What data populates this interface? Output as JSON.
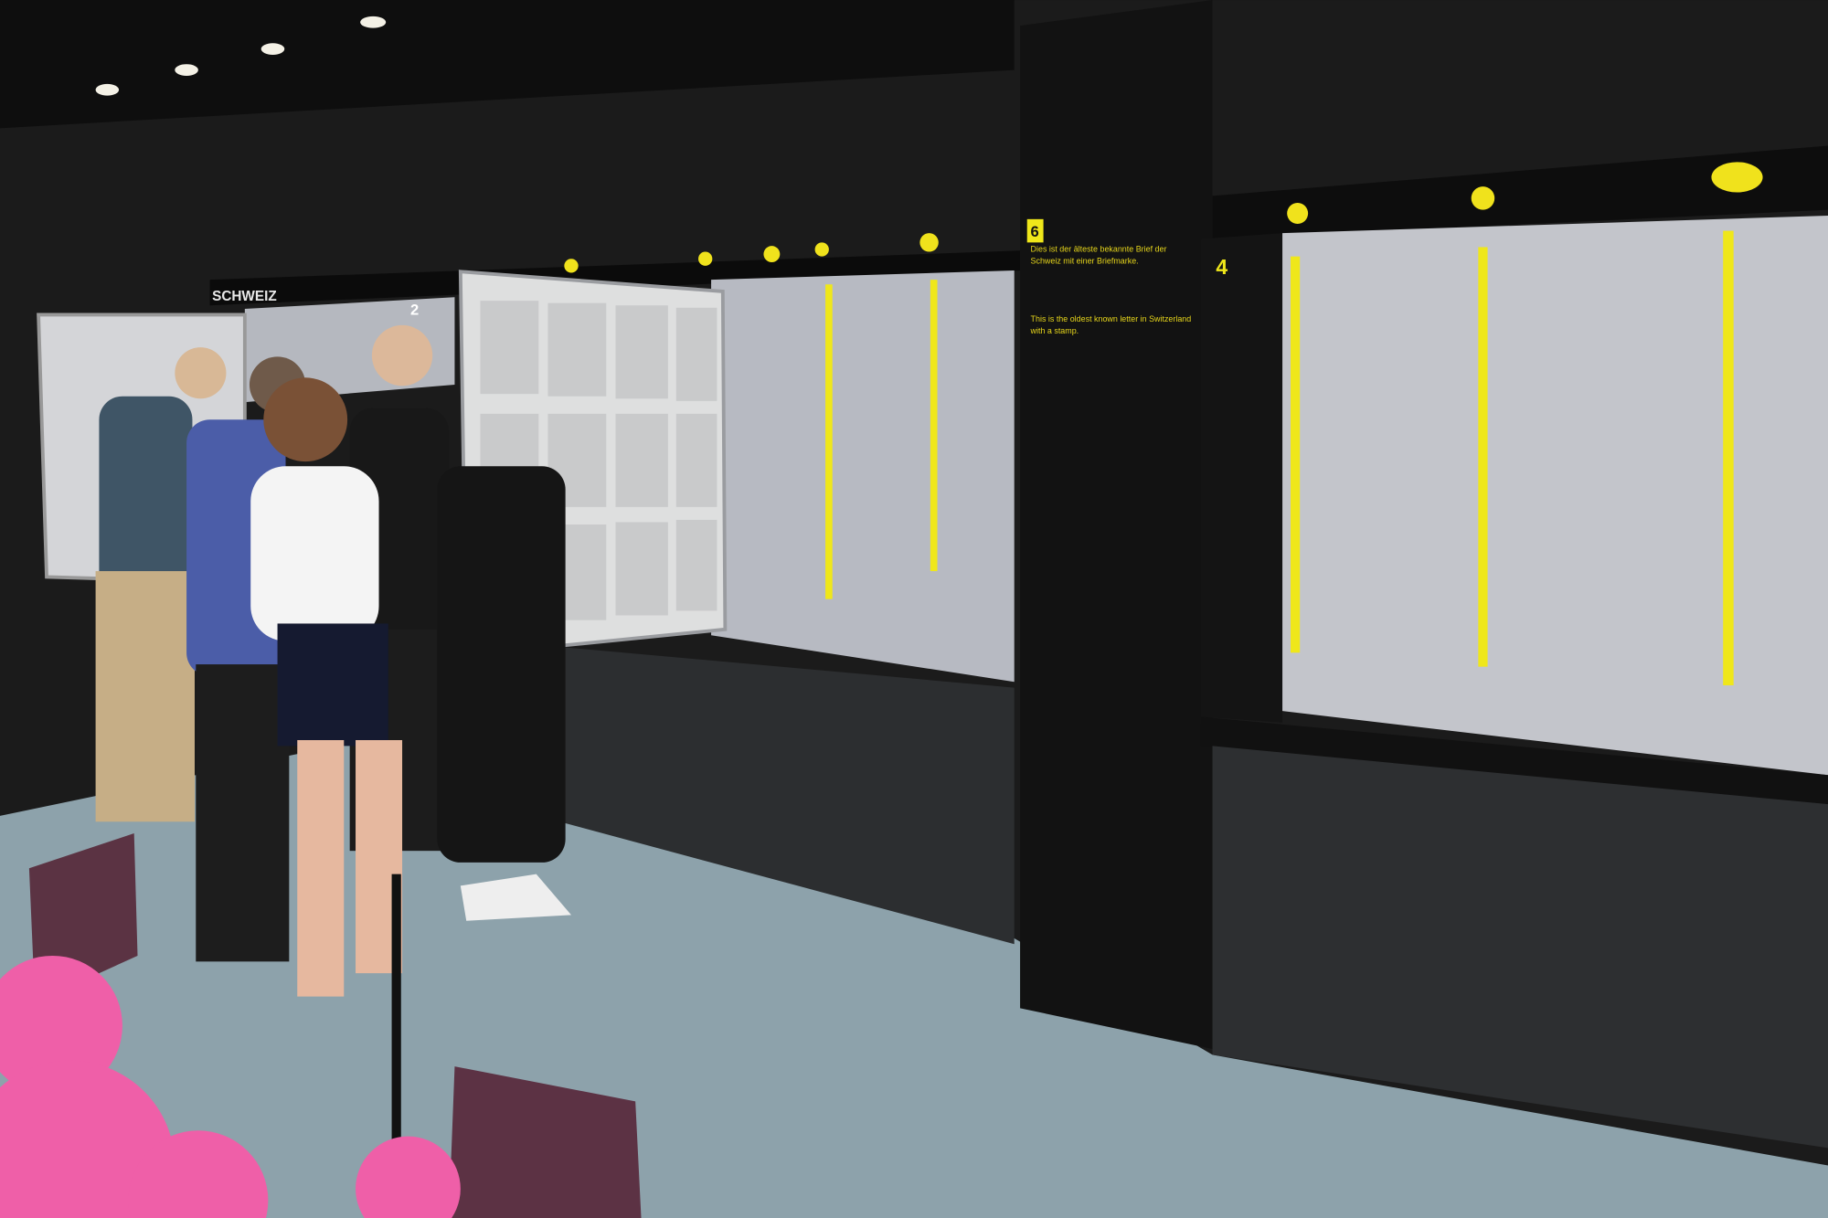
{
  "signage": {
    "country": "SCHWEIZ",
    "section_numbers": [
      "2",
      "6",
      "4"
    ]
  },
  "pillar_text": {
    "german": "Dies ist der älteste bekannte Brief der Schweiz mit einer Briefmarke.",
    "english": "This is the oldest known letter in Switzerland with a stamp."
  }
}
